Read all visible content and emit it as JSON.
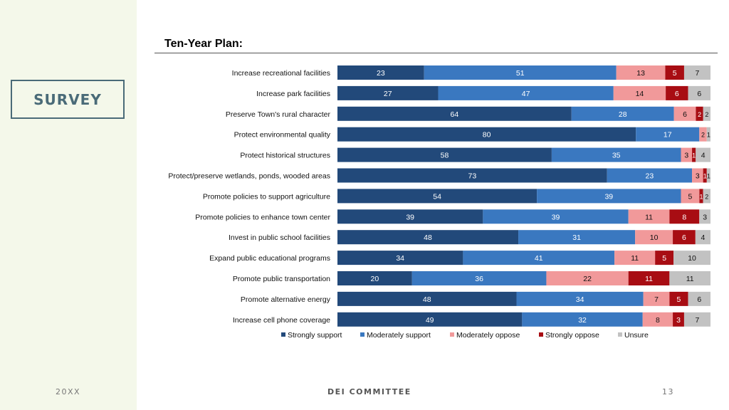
{
  "slide": {
    "badge": "SURVEY",
    "footer_left": "20XX",
    "footer_center": "DEI COMMITTEE",
    "footer_right": "13"
  },
  "chart_data": {
    "type": "bar",
    "orientation": "horizontal",
    "stacked": true,
    "title": "Ten-Year Plan:",
    "categories": [
      "Increase recreational facilities",
      "Increase park facilities",
      "Preserve Town's rural character",
      "Protect environmental quality",
      "Protect historical structures",
      "Protect/preserve wetlands, ponds, wooded areas",
      "Promote policies to support agriculture",
      "Promote policies to enhance town center",
      "Invest in public school facilities",
      "Expand public educational programs",
      "Promote public transportation",
      "Promote alternative energy",
      "Increase cell phone coverage"
    ],
    "series": [
      {
        "name": "Strongly support",
        "color": "#22497a",
        "values": [
          23,
          27,
          64,
          80,
          58,
          73,
          54,
          39,
          48,
          34,
          20,
          48,
          49
        ]
      },
      {
        "name": "Moderately support",
        "color": "#3a78c0",
        "values": [
          51,
          47,
          28,
          17,
          35,
          23,
          39,
          39,
          31,
          41,
          36,
          34,
          32
        ]
      },
      {
        "name": "Moderately oppose",
        "color": "#f1999a",
        "values": [
          13,
          14,
          6,
          2,
          3,
          3,
          5,
          11,
          10,
          11,
          22,
          7,
          8
        ]
      },
      {
        "name": "Strongly oppose",
        "color": "#a80d13",
        "values": [
          5,
          6,
          2,
          0,
          1,
          1,
          1,
          8,
          6,
          5,
          11,
          5,
          3
        ]
      },
      {
        "name": "Unsure",
        "color": "#c2c2c2",
        "values": [
          7,
          6,
          2,
          1,
          4,
          1,
          2,
          3,
          4,
          10,
          11,
          6,
          7
        ]
      }
    ],
    "xlim": [
      0,
      100
    ],
    "legend_position": "bottom"
  }
}
